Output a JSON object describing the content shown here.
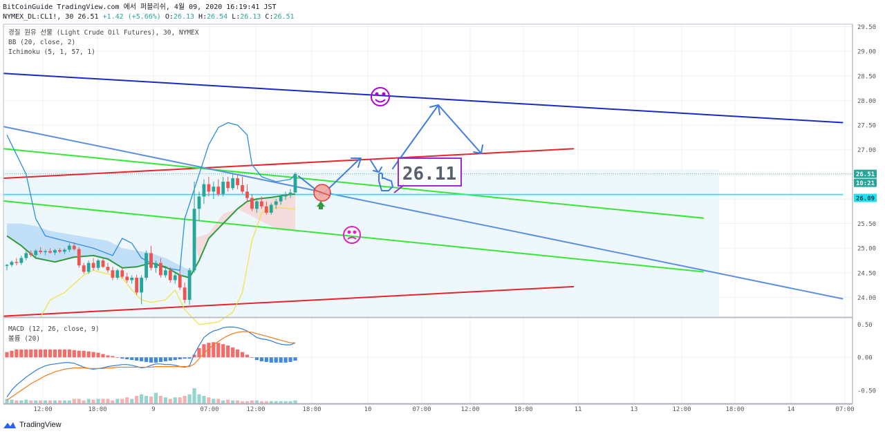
{
  "header": {
    "line1": "BitCoinGuide TradingView.com 에서 퍼블리쉬, 4월 09, 2020 16:19:41 JST",
    "symbol": "NYMEX_DL:CL1!, 30",
    "last": "26.51",
    "change": "+1.42 (+5.66%)",
    "open_label": "O:",
    "open": "26.13",
    "high_label": "H:",
    "high": "26.54",
    "low_label": "L:",
    "low": "26.13",
    "close_label": "C:",
    "close": "26.51"
  },
  "legend": {
    "line1": "경질 원유 선물 (Light Crude Oil Futures), 30, NYMEX",
    "line2": "BB (20, close, 2)",
    "line3": "Ichimoku (5, 1, 57, 1)"
  },
  "macd_legend": {
    "line1": "MACD (12, 26, close, 9)",
    "line2": "볼륨 (20)"
  },
  "price_badges": {
    "last": "26.51",
    "countdown": "10:21",
    "level": "26.09"
  },
  "annotation": {
    "text": "26.11"
  },
  "branding": {
    "text": "TradingView"
  },
  "colors": {
    "up": "#26a69a",
    "down": "#ef5350",
    "blue_line": "#1a28c8",
    "red_line": "#e8232a",
    "green_line": "#33e833",
    "steel_line": "#5b8fe0",
    "cyan_line": "#22e0f0",
    "bb_line": "#2b8be6",
    "ichimoku_green": "#2e9a3c",
    "yellow_line": "#f2e24a",
    "arrow": "#3c7ddf",
    "smiley": "#b000d8",
    "frown": "#e020c0"
  },
  "chart_data": [
    {
      "type": "line",
      "title": "경질 원유 선물 (Light Crude Oil Futures), 30, NYMEX",
      "x_tick_labels": [
        "12:00",
        "18:00",
        "9",
        "07:00",
        "12:00",
        "18:00",
        "10",
        "07:00",
        "12:00",
        "18:00",
        "11",
        "13",
        "12:00",
        "18:00",
        "14",
        "07:00"
      ],
      "y_tick_labels": [
        "29.50",
        "29.00",
        "28.50",
        "28.00",
        "27.50",
        "27.00",
        "26.50",
        "26.00",
        "25.50",
        "25.00",
        "24.50",
        "24.00"
      ],
      "ylim": [
        23.6,
        29.55
      ],
      "candles": [
        [
          24.64,
          24.68,
          24.55,
          24.66
        ],
        [
          24.66,
          24.75,
          24.62,
          24.72
        ],
        [
          24.72,
          24.8,
          24.65,
          24.7
        ],
        [
          24.7,
          24.85,
          24.66,
          24.8
        ],
        [
          24.8,
          24.95,
          24.75,
          24.9
        ],
        [
          24.9,
          24.96,
          24.82,
          24.86
        ],
        [
          24.86,
          24.98,
          24.8,
          24.95
        ],
        [
          24.95,
          25.02,
          24.88,
          24.92
        ],
        [
          24.92,
          24.97,
          24.86,
          24.94
        ],
        [
          24.94,
          25.0,
          24.89,
          24.91
        ],
        [
          24.91,
          24.99,
          24.86,
          24.96
        ],
        [
          24.96,
          25.0,
          24.9,
          24.93
        ],
        [
          24.93,
          25.0,
          24.88,
          24.97
        ],
        [
          24.97,
          25.1,
          24.92,
          25.05
        ],
        [
          25.05,
          25.12,
          24.95,
          24.98
        ],
        [
          24.98,
          25.02,
          24.6,
          24.65
        ],
        [
          24.65,
          24.7,
          24.48,
          24.52
        ],
        [
          24.52,
          24.75,
          24.48,
          24.7
        ],
        [
          24.7,
          24.8,
          24.55,
          24.6
        ],
        [
          24.6,
          24.78,
          24.55,
          24.75
        ],
        [
          24.75,
          24.8,
          24.6,
          24.62
        ],
        [
          24.62,
          24.7,
          24.5,
          24.55
        ],
        [
          24.55,
          24.62,
          24.35,
          24.4
        ],
        [
          24.4,
          24.58,
          24.36,
          24.55
        ],
        [
          24.55,
          24.6,
          24.38,
          24.42
        ],
        [
          24.42,
          24.5,
          24.3,
          24.35
        ],
        [
          24.35,
          24.45,
          24.28,
          24.4
        ],
        [
          24.4,
          24.46,
          24.05,
          24.1
        ],
        [
          24.1,
          24.45,
          23.86,
          24.4
        ],
        [
          24.4,
          24.95,
          24.35,
          24.9
        ],
        [
          24.9,
          25.05,
          24.55,
          24.6
        ],
        [
          24.6,
          24.75,
          24.5,
          24.7
        ],
        [
          24.7,
          24.8,
          24.4,
          24.45
        ],
        [
          24.45,
          24.6,
          24.4,
          24.55
        ],
        [
          24.55,
          24.62,
          24.3,
          24.35
        ],
        [
          24.35,
          24.5,
          24.28,
          24.45
        ],
        [
          24.45,
          24.55,
          24.15,
          24.2
        ],
        [
          24.2,
          24.3,
          23.88,
          23.95
        ],
        [
          23.95,
          24.6,
          23.85,
          24.55
        ],
        [
          24.55,
          26.35,
          24.5,
          25.8
        ],
        [
          25.8,
          26.15,
          25.55,
          26.05
        ],
        [
          26.05,
          26.4,
          25.9,
          26.3
        ],
        [
          26.3,
          26.45,
          26.05,
          26.15
        ],
        [
          26.15,
          26.35,
          26.0,
          26.25
        ],
        [
          26.25,
          26.4,
          26.05,
          26.1
        ],
        [
          26.1,
          26.45,
          26.05,
          26.35
        ],
        [
          26.35,
          26.45,
          26.15,
          26.22
        ],
        [
          26.22,
          26.5,
          26.18,
          26.42
        ],
        [
          26.42,
          26.48,
          26.2,
          26.28
        ],
        [
          26.28,
          26.45,
          26.1,
          26.15
        ],
        [
          26.15,
          26.3,
          25.95,
          26.02
        ],
        [
          26.02,
          26.1,
          25.75,
          25.8
        ],
        [
          25.8,
          25.98,
          25.72,
          25.95
        ],
        [
          25.95,
          26.05,
          25.8,
          25.85
        ],
        [
          25.85,
          25.95,
          25.68,
          25.72
        ],
        [
          25.72,
          25.92,
          25.68,
          25.88
        ],
        [
          25.88,
          26.0,
          25.8,
          25.95
        ],
        [
          25.95,
          26.08,
          25.88,
          26.05
        ],
        [
          26.05,
          26.15,
          25.98,
          26.08
        ],
        [
          26.08,
          26.2,
          26.02,
          26.13
        ],
        [
          26.13,
          26.54,
          26.13,
          26.51
        ]
      ],
      "overlay_lines": [
        {
          "name": "trend-blue",
          "color": "#1a28c8",
          "points": [
            [
              0,
              28.55
            ],
            [
              174,
              27.55
            ]
          ]
        },
        {
          "name": "trend-red-upper",
          "color": "#e8232a",
          "points": [
            [
              0,
              26.42
            ],
            [
              118,
              27.02
            ]
          ]
        },
        {
          "name": "trend-red-lower",
          "color": "#e8232a",
          "points": [
            [
              0,
              23.62
            ],
            [
              118,
              24.22
            ]
          ]
        },
        {
          "name": "trend-green-upper",
          "color": "#33e833",
          "points": [
            [
              0,
              27.02
            ],
            [
              145,
              25.61
            ]
          ]
        },
        {
          "name": "trend-green-lower",
          "color": "#33e833",
          "points": [
            [
              0,
              25.96
            ],
            [
              145,
              24.52
            ]
          ]
        },
        {
          "name": "trend-steel",
          "color": "#5b8fe0",
          "points": [
            [
              0,
              27.47
            ],
            [
              174,
              23.97
            ]
          ]
        },
        {
          "name": "support-cyan",
          "color": "#22e0f0",
          "points": [
            [
              0,
              26.09
            ],
            [
              174,
              26.09
            ]
          ]
        }
      ],
      "bb_upper": [
        [
          0,
          27.3
        ],
        [
          4,
          26.5
        ],
        [
          6,
          25.6
        ],
        [
          8,
          25.25
        ],
        [
          10,
          25.2
        ],
        [
          14,
          25.1
        ],
        [
          18,
          25.0
        ],
        [
          22,
          24.85
        ],
        [
          24,
          25.2
        ],
        [
          26,
          25.1
        ],
        [
          28,
          24.8
        ],
        [
          30,
          24.7
        ],
        [
          33,
          24.6
        ],
        [
          36,
          24.55
        ],
        [
          37,
          25.6
        ],
        [
          40,
          26.5
        ],
        [
          42,
          27.1
        ],
        [
          44,
          27.45
        ],
        [
          46,
          27.55
        ],
        [
          48,
          27.5
        ],
        [
          50,
          27.3
        ],
        [
          51,
          26.7
        ],
        [
          53,
          26.45
        ],
        [
          56,
          26.35
        ],
        [
          59,
          26.4
        ],
        [
          60,
          26.5
        ]
      ],
      "bb_lower": [
        [
          7,
          23.6
        ],
        [
          9,
          23.95
        ],
        [
          12,
          24.1
        ],
        [
          16,
          24.45
        ],
        [
          18,
          24.55
        ],
        [
          20,
          24.5
        ],
        [
          22,
          24.45
        ],
        [
          24,
          24.4
        ],
        [
          26,
          24.15
        ],
        [
          28,
          23.95
        ],
        [
          30,
          23.9
        ],
        [
          33,
          23.95
        ],
        [
          35,
          24.15
        ],
        [
          37,
          23.75
        ],
        [
          40,
          23.45
        ],
        [
          44,
          23.5
        ],
        [
          47,
          23.7
        ],
        [
          49,
          24.1
        ],
        [
          51,
          25.15
        ],
        [
          53,
          25.72
        ],
        [
          56,
          25.82
        ],
        [
          60,
          25.8
        ]
      ],
      "ichimoku_line": [
        [
          0,
          25.25
        ],
        [
          3,
          25.05
        ],
        [
          6,
          24.8
        ],
        [
          10,
          24.72
        ],
        [
          14,
          24.82
        ],
        [
          18,
          24.85
        ],
        [
          21,
          24.78
        ],
        [
          24,
          24.6
        ],
        [
          27,
          24.62
        ],
        [
          30,
          24.7
        ],
        [
          33,
          24.62
        ],
        [
          36,
          24.45
        ],
        [
          38,
          24.4
        ],
        [
          40,
          24.75
        ],
        [
          42,
          25.2
        ],
        [
          44,
          25.4
        ],
        [
          46,
          25.6
        ],
        [
          48,
          25.8
        ],
        [
          50,
          25.95
        ],
        [
          52,
          26.0
        ],
        [
          55,
          26.03
        ],
        [
          58,
          26.08
        ],
        [
          60,
          26.1
        ]
      ],
      "ichimoku_cloud_blue": [
        [
          0,
          25.5
        ],
        [
          3,
          25.5
        ],
        [
          6,
          25.45
        ],
        [
          9,
          25.35
        ],
        [
          12,
          25.3
        ],
        [
          15,
          25.25
        ],
        [
          18,
          25.2
        ],
        [
          21,
          25.15
        ],
        [
          24,
          25.0
        ],
        [
          27,
          24.95
        ],
        [
          30,
          24.9
        ],
        [
          33,
          24.8
        ],
        [
          35,
          24.7
        ],
        [
          37,
          24.6
        ],
        [
          39,
          24.55
        ]
      ],
      "ichimoku_cloud_pink": [
        [
          39,
          25.2
        ],
        [
          42,
          25.3
        ],
        [
          45,
          25.7
        ],
        [
          48,
          25.8
        ],
        [
          52,
          25.6
        ],
        [
          56,
          25.4
        ],
        [
          60,
          25.35
        ]
      ]
    },
    {
      "type": "bar",
      "title": "MACD (12, 26, close, 9)",
      "y_tick_labels": [
        "0.50",
        "0.00",
        "-0.50"
      ],
      "ylim": [
        -0.7,
        0.6
      ],
      "histogram": [
        0.08,
        0.1,
        0.12,
        0.12,
        0.12,
        0.12,
        0.12,
        0.12,
        0.12,
        0.12,
        0.12,
        0.12,
        0.12,
        0.12,
        0.11,
        0.1,
        0.1,
        0.09,
        0.08,
        0.07,
        0.05,
        0.03,
        0.02,
        0.0,
        -0.02,
        -0.03,
        -0.04,
        -0.05,
        -0.06,
        -0.07,
        -0.08,
        -0.08,
        -0.07,
        -0.06,
        -0.05,
        -0.04,
        -0.03,
        -0.02,
        -0.02,
        0.04,
        0.14,
        0.2,
        0.22,
        0.23,
        0.22,
        0.2,
        0.18,
        0.15,
        0.12,
        0.08,
        0.04,
        0.0,
        -0.04,
        -0.06,
        -0.07,
        -0.08,
        -0.08,
        -0.08,
        -0.08,
        -0.07,
        -0.05
      ],
      "macd_line": [
        -0.6,
        -0.5,
        -0.42,
        -0.36,
        -0.3,
        -0.25,
        -0.2,
        -0.16,
        -0.13,
        -0.11,
        -0.1,
        -0.09,
        -0.08,
        -0.08,
        -0.09,
        -0.12,
        -0.15,
        -0.17,
        -0.18,
        -0.17,
        -0.16,
        -0.14,
        -0.13,
        -0.12,
        -0.11,
        -0.11,
        -0.12,
        -0.14,
        -0.16,
        -0.15,
        -0.12,
        -0.1,
        -0.1,
        -0.11,
        -0.11,
        -0.12,
        -0.14,
        -0.15,
        -0.13,
        0.05,
        0.18,
        0.3,
        0.36,
        0.4,
        0.42,
        0.45,
        0.46,
        0.46,
        0.45,
        0.43,
        0.4,
        0.35,
        0.3,
        0.28,
        0.27,
        0.25,
        0.22,
        0.2,
        0.19,
        0.19,
        0.22
      ],
      "signal_line": [
        -0.65,
        -0.6,
        -0.55,
        -0.5,
        -0.45,
        -0.4,
        -0.36,
        -0.32,
        -0.28,
        -0.25,
        -0.22,
        -0.2,
        -0.18,
        -0.17,
        -0.16,
        -0.16,
        -0.16,
        -0.17,
        -0.17,
        -0.17,
        -0.17,
        -0.16,
        -0.16,
        -0.15,
        -0.15,
        -0.15,
        -0.15,
        -0.15,
        -0.15,
        -0.15,
        -0.15,
        -0.14,
        -0.14,
        -0.14,
        -0.14,
        -0.14,
        -0.14,
        -0.14,
        -0.14,
        -0.1,
        -0.02,
        0.06,
        0.13,
        0.19,
        0.24,
        0.29,
        0.33,
        0.36,
        0.38,
        0.39,
        0.39,
        0.38,
        0.36,
        0.34,
        0.32,
        0.3,
        0.28,
        0.26,
        0.24,
        0.22,
        0.22
      ],
      "volume": [
        0.3,
        0.25,
        0.2,
        0.2,
        0.25,
        0.2,
        0.2,
        0.2,
        0.2,
        0.2,
        0.2,
        0.2,
        0.2,
        0.2,
        0.3,
        0.3,
        0.2,
        0.3,
        0.25,
        0.3,
        0.3,
        0.3,
        0.2,
        0.3,
        0.3,
        0.4,
        0.3,
        0.5,
        0.6,
        0.5,
        0.45,
        0.7,
        0.5,
        0.4,
        0.3,
        0.4,
        0.4,
        0.5,
        0.6,
        1.0,
        0.6,
        0.5,
        0.4,
        0.3,
        0.3,
        0.2,
        0.25,
        0.2,
        0.2,
        0.15,
        0.15,
        0.2,
        0.2,
        0.15,
        0.15,
        0.15,
        0.15,
        0.15,
        0.15,
        0.15,
        0.2
      ]
    }
  ]
}
